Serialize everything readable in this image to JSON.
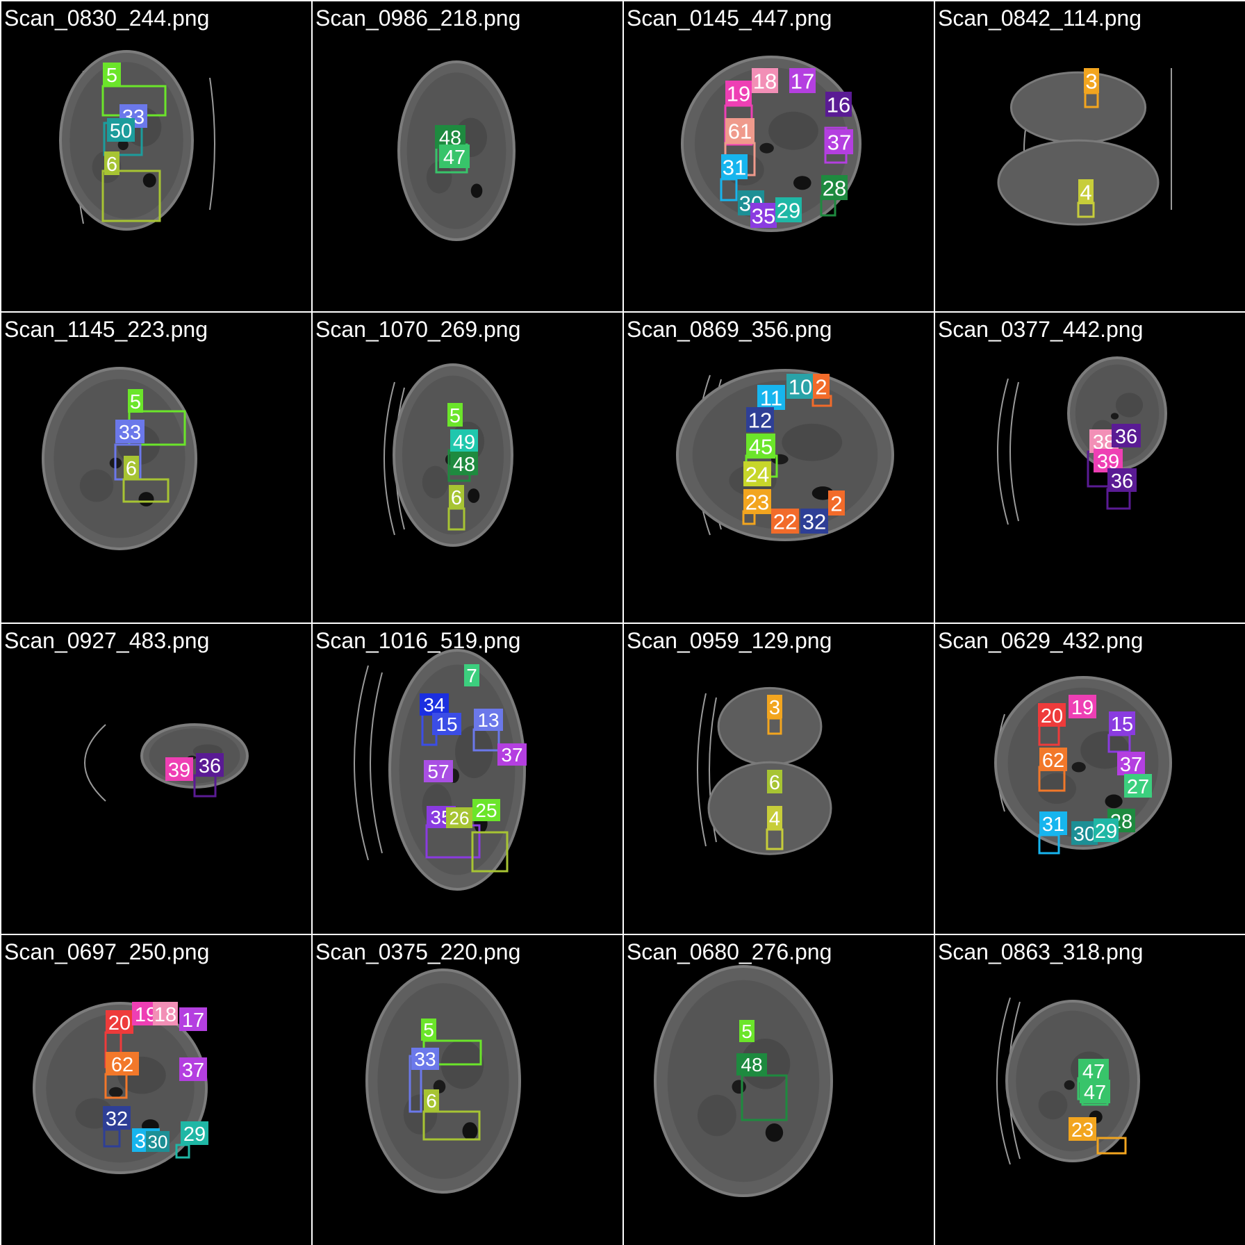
{
  "grid": {
    "columns": 4,
    "rows": 4,
    "tiles": [
      {
        "filename": "Scan_0830_244.png",
        "labels": [
          {
            "text": "5",
            "color": "#6be52a"
          },
          {
            "text": "33",
            "color": "#6b78ea"
          },
          {
            "text": "50",
            "color": "#1d9c9c"
          },
          {
            "text": "6",
            "color": "#a7c433"
          }
        ]
      },
      {
        "filename": "Scan_0986_218.png",
        "labels": [
          {
            "text": "48",
            "color": "#1e8a3f"
          },
          {
            "text": "47",
            "color": "#38c46a"
          }
        ]
      },
      {
        "filename": "Scan_0145_447.png",
        "labels": [
          {
            "text": "19",
            "color": "#ee3fb4"
          },
          {
            "text": "18",
            "color": "#f28fb6"
          },
          {
            "text": "17",
            "color": "#b43fe0"
          },
          {
            "text": "16",
            "color": "#5a1b94"
          },
          {
            "text": "61",
            "color": "#ef9a8c"
          },
          {
            "text": "37",
            "color": "#b43fe0"
          },
          {
            "text": "31",
            "color": "#17b5ee"
          },
          {
            "text": "28",
            "color": "#1e8a3f"
          },
          {
            "text": "30",
            "color": "#1d8f95"
          },
          {
            "text": "35",
            "color": "#8a3be0"
          },
          {
            "text": "29",
            "color": "#1fb7a5"
          }
        ]
      },
      {
        "filename": "Scan_0842_114.png",
        "labels": [
          {
            "text": "3",
            "color": "#f2a51f"
          },
          {
            "text": "4",
            "color": "#c7cd3a"
          }
        ]
      },
      {
        "filename": "Scan_1145_223.png",
        "labels": [
          {
            "text": "5",
            "color": "#6be52a"
          },
          {
            "text": "33",
            "color": "#6b78ea"
          },
          {
            "text": "6",
            "color": "#a7c433"
          }
        ]
      },
      {
        "filename": "Scan_1070_269.png",
        "labels": [
          {
            "text": "5",
            "color": "#6be52a"
          },
          {
            "text": "49",
            "color": "#1fc7ad"
          },
          {
            "text": "48",
            "color": "#1e8a3f"
          },
          {
            "text": "6",
            "color": "#a7c433"
          }
        ]
      },
      {
        "filename": "Scan_0869_356.png",
        "labels": [
          {
            "text": "11",
            "color": "#17b5ee"
          },
          {
            "text": "10",
            "color": "#2aa3a8"
          },
          {
            "text": "2",
            "color": "#f26b2a"
          },
          {
            "text": "12",
            "color": "#2e3f96"
          },
          {
            "text": "45",
            "color": "#6be52a"
          },
          {
            "text": "24",
            "color": "#c7d62a"
          },
          {
            "text": "23",
            "color": "#f2a51f"
          },
          {
            "text": "22",
            "color": "#f26b2a"
          },
          {
            "text": "32",
            "color": "#2e3f96"
          },
          {
            "text": "2",
            "color": "#f26b2a"
          }
        ]
      },
      {
        "filename": "Scan_0377_442.png",
        "labels": [
          {
            "text": "38",
            "color": "#f28fb6"
          },
          {
            "text": "36",
            "color": "#5a1b94"
          },
          {
            "text": "39",
            "color": "#ee3fb4"
          },
          {
            "text": "36",
            "color": "#5a1b94"
          }
        ]
      },
      {
        "filename": "Scan_0927_483.png",
        "labels": [
          {
            "text": "39",
            "color": "#ee3fb4"
          },
          {
            "text": "36",
            "color": "#5a1b94"
          }
        ]
      },
      {
        "filename": "Scan_1016_519.png",
        "labels": [
          {
            "text": "7",
            "color": "#3ccf7e"
          },
          {
            "text": "34",
            "color": "#1b2fe0"
          },
          {
            "text": "15",
            "color": "#3b4de6"
          },
          {
            "text": "13",
            "color": "#6b78ea"
          },
          {
            "text": "37",
            "color": "#b43fe0"
          },
          {
            "text": "57",
            "color": "#a94fe3"
          },
          {
            "text": "35",
            "color": "#8a3be0"
          },
          {
            "text": "26",
            "color": "#a7c433"
          },
          {
            "text": "25",
            "color": "#6be52a"
          }
        ]
      },
      {
        "filename": "Scan_0959_129.png",
        "labels": [
          {
            "text": "3",
            "color": "#f2a51f"
          },
          {
            "text": "6",
            "color": "#a7c433"
          },
          {
            "text": "4",
            "color": "#c7cd3a"
          }
        ]
      },
      {
        "filename": "Scan_0629_432.png",
        "labels": [
          {
            "text": "20",
            "color": "#ee3b3b"
          },
          {
            "text": "19",
            "color": "#ee3fb4"
          },
          {
            "text": "15",
            "color": "#8a3be0"
          },
          {
            "text": "62",
            "color": "#f2782a"
          },
          {
            "text": "37",
            "color": "#b43fe0"
          },
          {
            "text": "27",
            "color": "#3ccf7e"
          },
          {
            "text": "31",
            "color": "#17b5ee"
          },
          {
            "text": "28",
            "color": "#1e8a3f"
          },
          {
            "text": "30",
            "color": "#1d8f95"
          },
          {
            "text": "29",
            "color": "#1fb7a5"
          }
        ]
      },
      {
        "filename": "Scan_0697_250.png",
        "labels": [
          {
            "text": "20",
            "color": "#ee3b3b"
          },
          {
            "text": "19",
            "color": "#ee3fb4"
          },
          {
            "text": "18",
            "color": "#f28fb6"
          },
          {
            "text": "17",
            "color": "#b43fe0"
          },
          {
            "text": "62",
            "color": "#f2782a"
          },
          {
            "text": "37",
            "color": "#b43fe0"
          },
          {
            "text": "32",
            "color": "#2e3f96"
          },
          {
            "text": "29",
            "color": "#1fb7a5"
          },
          {
            "text": "31",
            "color": "#17b5ee"
          },
          {
            "text": "30",
            "color": "#1d8f95"
          }
        ]
      },
      {
        "filename": "Scan_0375_220.png",
        "labels": [
          {
            "text": "5",
            "color": "#6be52a"
          },
          {
            "text": "33",
            "color": "#6b78ea"
          },
          {
            "text": "6",
            "color": "#a7c433"
          }
        ]
      },
      {
        "filename": "Scan_0680_276.png",
        "labels": [
          {
            "text": "5",
            "color": "#6be52a"
          },
          {
            "text": "48",
            "color": "#1e8a3f"
          }
        ]
      },
      {
        "filename": "Scan_0863_318.png",
        "labels": [
          {
            "text": "47",
            "color": "#38c46a"
          },
          {
            "text": "47",
            "color": "#38c46a"
          },
          {
            "text": "23",
            "color": "#f2a51f"
          }
        ]
      }
    ]
  }
}
